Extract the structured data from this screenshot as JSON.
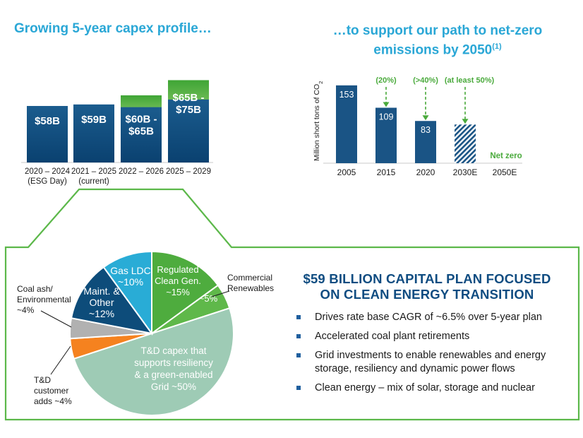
{
  "titles": {
    "left": "Growing 5-year capex profile…",
    "right_line1": "…to support our path to net-zero",
    "right_line2": "emissions by 2050",
    "right_sup": "(1)"
  },
  "chart_data": [
    {
      "type": "bar",
      "title": "Growing 5-year capex profile…",
      "categories": [
        [
          "2020 – 2024",
          "(ESG Day)"
        ],
        [
          "2021 – 2025",
          "(current)"
        ],
        [
          "2022 – 2026"
        ],
        [
          "2025 – 2029"
        ]
      ],
      "series": [
        {
          "values": [
            58,
            59,
            60,
            65
          ]
        },
        {
          "values": [
            0,
            0,
            5,
            10
          ]
        }
      ],
      "bar_labels": [
        [
          "$58B"
        ],
        [
          "$59B"
        ],
        [
          "$60B -",
          "$65B"
        ],
        [
          "$65B -",
          "$75B"
        ]
      ],
      "colors": {
        "base": "#0d4c7a",
        "range": "#4aaa3c"
      }
    },
    {
      "type": "bar",
      "title": "…to support our path to net-zero emissions by 2050",
      "ylabel": "Million short tons of CO2",
      "categories": [
        "2005",
        "2015",
        "2020",
        "2030E",
        "2050E"
      ],
      "values": [
        153,
        109,
        83,
        76,
        0
      ],
      "value_labels": [
        "153",
        "109",
        "83",
        "",
        ""
      ],
      "reductions": [
        {
          "category": "2015",
          "label": "(20%)"
        },
        {
          "category": "2020",
          "label": "(>40%)"
        },
        {
          "category": "2030E",
          "label": "(at least 50%)"
        }
      ],
      "net_zero_label": "Net zero",
      "colors": {
        "bar": "#1a5485",
        "arrow": "#4aaa3c"
      }
    },
    {
      "type": "pie",
      "slices": [
        {
          "label": [
            "Regulated",
            "Clean Gen.",
            "~15%"
          ],
          "value": 15,
          "color": "#4eac3e"
        },
        {
          "label": [
            "~5%"
          ],
          "value": 5,
          "color": "#5fb84a"
        },
        {
          "label": [
            "T&D capex that",
            "supports resiliency",
            "& a green-enabled",
            "Grid ~50%"
          ],
          "value": 50,
          "color": "#9ecbb5"
        },
        {
          "label": [
            "T&D",
            "customer",
            "adds ~4%"
          ],
          "value": 4,
          "color": "#f5821f"
        },
        {
          "label": [
            "Coal ash/",
            "Environmental",
            "~4%"
          ],
          "value": 4,
          "color": "#b1b1b1"
        },
        {
          "label": [
            "Maint. &",
            "Other",
            "~12%"
          ],
          "value": 12,
          "color": "#0d4c7a"
        },
        {
          "label": [
            "Gas LDC",
            "~10%"
          ],
          "value": 10,
          "color": "#29acd6"
        }
      ],
      "callouts": {
        "commercial": [
          "Commercial",
          "Renewables"
        ]
      }
    }
  ],
  "callout": {
    "heading_line1": "$59 BILLION CAPITAL PLAN FOCUSED",
    "heading_line2": "ON CLEAN ENERGY TRANSITION",
    "bullets": [
      "Drives rate base CAGR of ~6.5% over 5-year plan",
      "Accelerated coal plant retirements",
      "Grid investments to enable renewables and energy storage, resiliency and dynamic power flows",
      "Clean energy – mix of solar, storage and nuclear"
    ]
  },
  "colors": {
    "title": "#2aa7d6",
    "frame": "#5cb84a",
    "heading": "#0f4c81"
  }
}
